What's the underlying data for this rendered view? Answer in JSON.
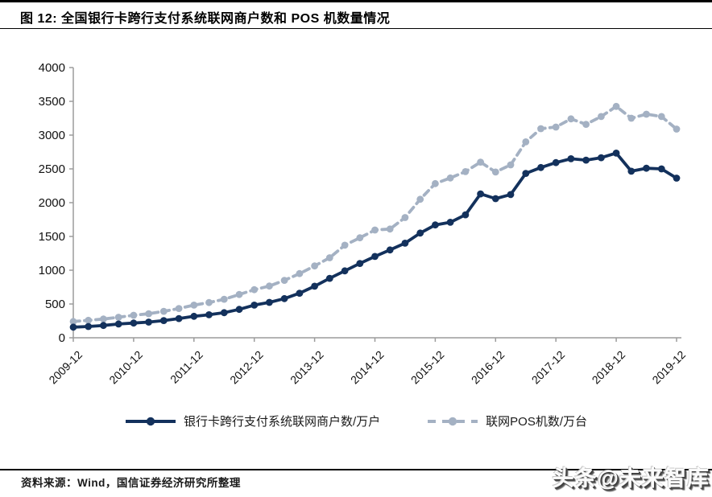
{
  "header": {
    "title": "图 12:  全国银行卡跨行支付系统联网商户数和 POS 机数量情况"
  },
  "chart_data": {
    "type": "line",
    "title": "全国银行卡跨行支付系统联网商户数和POS机数量情况",
    "xlabel": "",
    "ylabel": "",
    "ylim": [
      0,
      4000
    ],
    "y_ticks": [
      0,
      500,
      1000,
      1500,
      2000,
      2500,
      3000,
      3500,
      4000
    ],
    "grid": false,
    "legend_position": "bottom",
    "x": [
      "2009-12",
      "2010-03",
      "2010-06",
      "2010-09",
      "2010-12",
      "2011-03",
      "2011-06",
      "2011-09",
      "2011-12",
      "2012-03",
      "2012-06",
      "2012-09",
      "2012-12",
      "2013-03",
      "2013-06",
      "2013-09",
      "2013-12",
      "2014-03",
      "2014-06",
      "2014-09",
      "2014-12",
      "2015-03",
      "2015-06",
      "2015-09",
      "2015-12",
      "2016-03",
      "2016-06",
      "2016-09",
      "2016-12",
      "2017-03",
      "2017-06",
      "2017-09",
      "2017-12",
      "2018-03",
      "2018-06",
      "2018-09",
      "2018-12",
      "2019-03",
      "2019-06",
      "2019-09",
      "2019-12"
    ],
    "x_tick_labels": [
      "2009-12",
      "2010-12",
      "2011-12",
      "2012-12",
      "2013-12",
      "2014-12",
      "2015-12",
      "2016-12",
      "2017-12",
      "2018-12",
      "2019-12"
    ],
    "series": [
      {
        "name": "银行卡跨行支付系统联网商户数/万户",
        "color": "#13315c",
        "style": "solid",
        "values": [
          157,
          167,
          182,
          203,
          218,
          232,
          255,
          285,
          318,
          341,
          372,
          420,
          483,
          524,
          580,
          660,
          763,
          880,
          990,
          1100,
          1203,
          1300,
          1400,
          1550,
          1670,
          1710,
          1820,
          2130,
          2060,
          2120,
          2433,
          2520,
          2593,
          2650,
          2630,
          2665,
          2733,
          2465,
          2510,
          2500,
          2363
        ]
      },
      {
        "name": "联网POS机数/万台",
        "color": "#a4b1c3",
        "style": "dashed",
        "values": [
          241,
          258,
          277,
          303,
          333,
          356,
          392,
          433,
          483,
          522,
          570,
          640,
          712,
          765,
          850,
          950,
          1063,
          1185,
          1370,
          1480,
          1595,
          1610,
          1780,
          2050,
          2282,
          2365,
          2460,
          2600,
          2453,
          2560,
          2900,
          3095,
          3119,
          3240,
          3160,
          3275,
          3425,
          3250,
          3310,
          3275,
          3089
        ]
      }
    ],
    "axis_color": "#9c9c9c",
    "tick_label_color": "#111111"
  },
  "footer": {
    "source": "资料来源：Wind，国信证券经济研究所整理"
  },
  "watermark": {
    "text": "头条@未来智库"
  }
}
